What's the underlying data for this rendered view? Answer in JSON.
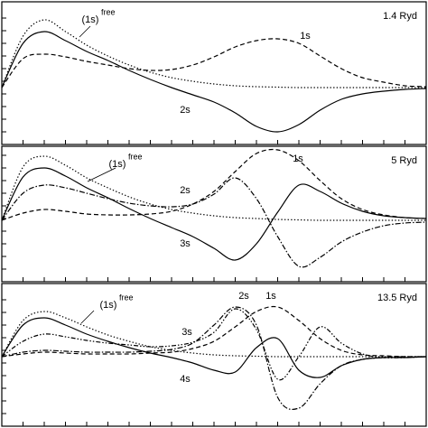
{
  "chart_data": [
    {
      "type": "line",
      "annotation": "1.4 Ryd",
      "x": [
        0,
        5,
        10,
        15,
        20,
        25,
        30,
        35,
        40,
        45,
        50,
        55,
        60,
        65,
        70,
        75,
        80,
        85,
        90,
        95,
        100
      ],
      "xlim": [
        0,
        100
      ],
      "ylim": [
        -1.26,
        1.9
      ],
      "series": [
        {
          "name": "(1s)",
          "name_sup": "free",
          "color": "#000",
          "style": "dotted",
          "values": [
            0,
            1.14,
            1.5,
            1.24,
            0.94,
            0.7,
            0.5,
            0.34,
            0.22,
            0.14,
            0.08,
            0.04,
            0.02,
            0.01,
            0,
            0,
            0,
            0,
            0,
            0,
            0
          ]
        },
        {
          "name": "1s",
          "color": "#000",
          "style": "dashed",
          "values": [
            0,
            0.64,
            0.74,
            0.68,
            0.58,
            0.5,
            0.42,
            0.38,
            0.4,
            0.5,
            0.68,
            0.9,
            1.04,
            1.08,
            0.98,
            0.7,
            0.42,
            0.22,
            0.12,
            0.04,
            0.02
          ]
        },
        {
          "name": "2s",
          "color": "#000",
          "style": "solid",
          "values": [
            0,
            0.98,
            1.24,
            1.04,
            0.8,
            0.6,
            0.38,
            0.18,
            0,
            -0.16,
            -0.32,
            -0.56,
            -0.86,
            -0.98,
            -0.82,
            -0.5,
            -0.26,
            -0.14,
            -0.08,
            -0.04,
            -0.02
          ]
        }
      ]
    },
    {
      "type": "line",
      "annotation": "5 Ryd",
      "x": [
        0,
        5,
        10,
        15,
        20,
        25,
        30,
        35,
        40,
        45,
        50,
        55,
        60,
        65,
        70,
        75,
        80,
        85,
        90,
        95,
        100
      ],
      "xlim": [
        0,
        100
      ],
      "ylim": [
        -1.36,
        1.64
      ],
      "series": [
        {
          "name": "(1s)",
          "name_sup": "free",
          "color": "#000",
          "style": "dotted",
          "values": [
            0,
            1.18,
            1.42,
            1.22,
            0.94,
            0.72,
            0.52,
            0.36,
            0.24,
            0.16,
            0.1,
            0.06,
            0.04,
            0.02,
            0.01,
            0,
            0,
            0,
            0,
            0,
            0
          ]
        },
        {
          "name": "2s",
          "color": "#000",
          "style": "dashdot",
          "values": [
            0,
            0.6,
            0.78,
            0.72,
            0.6,
            0.48,
            0.38,
            0.32,
            0.3,
            0.36,
            0.58,
            0.94,
            0.48,
            -0.36,
            -1.02,
            -0.82,
            -0.48,
            -0.26,
            -0.12,
            -0.06,
            -0.04
          ]
        },
        {
          "name": "3s",
          "color": "#000",
          "style": "solid",
          "values": [
            0,
            0.96,
            1.16,
            0.98,
            0.72,
            0.5,
            0.26,
            0.04,
            -0.16,
            -0.36,
            -0.62,
            -0.88,
            -0.52,
            0.18,
            0.78,
            0.64,
            0.38,
            0.2,
            0.1,
            0.06,
            0.04
          ]
        },
        {
          "name": "1s",
          "color": "#000",
          "style": "dashed",
          "values": [
            0,
            0.16,
            0.24,
            0.2,
            0.14,
            0.12,
            0.12,
            0.14,
            0.2,
            0.36,
            0.64,
            1.08,
            1.48,
            1.56,
            1.32,
            0.88,
            0.48,
            0.24,
            0.12,
            0.06,
            0.04
          ]
        }
      ]
    },
    {
      "type": "line",
      "annotation": "13.5 Ryd",
      "x": [
        0,
        5,
        10,
        15,
        20,
        25,
        30,
        35,
        40,
        45,
        50,
        55,
        60,
        65,
        70,
        75,
        80,
        85,
        90,
        95,
        100
      ],
      "xlim": [
        0,
        100
      ],
      "ylim": [
        -1.54,
        1.62
      ],
      "series": [
        {
          "name": "(1s)",
          "name_sup": "free",
          "color": "#000",
          "style": "dotted",
          "values": [
            0,
            0.8,
            1.0,
            0.86,
            0.66,
            0.48,
            0.34,
            0.22,
            0.14,
            0.08,
            0.04,
            0.02,
            0.01,
            0,
            0,
            0,
            0,
            0,
            0,
            0,
            0
          ]
        },
        {
          "name": "3s",
          "color": "#000",
          "style": "dashdotdot",
          "values": [
            0,
            0.34,
            0.5,
            0.44,
            0.36,
            0.3,
            0.26,
            0.22,
            0.24,
            0.32,
            0.54,
            1.06,
            0.6,
            -0.5,
            0,
            0.66,
            0.3,
            0.06,
            -0.02,
            -0.02,
            0
          ]
        },
        {
          "name": "4s",
          "color": "#000",
          "style": "solid",
          "values": [
            0,
            0.7,
            0.86,
            0.7,
            0.5,
            0.34,
            0.2,
            0.08,
            -0.02,
            -0.14,
            -0.3,
            -0.34,
            0.2,
            0.4,
            -0.3,
            -0.46,
            -0.2,
            -0.06,
            -0.02,
            -0.02,
            0
          ]
        },
        {
          "name": "2s",
          "color": "#000",
          "style": "dashdot",
          "values": [
            0,
            0.1,
            0.14,
            0.12,
            0.1,
            0.1,
            0.1,
            0.12,
            0.16,
            0.3,
            0.7,
            1.1,
            0.7,
            -0.9,
            -1.14,
            -0.6,
            -0.2,
            -0.06,
            -0.02,
            0,
            0
          ]
        },
        {
          "name": "1s",
          "color": "#000",
          "style": "dashed",
          "values": [
            0,
            0.06,
            0.1,
            0.08,
            0.06,
            0.06,
            0.06,
            0.08,
            0.1,
            0.18,
            0.34,
            0.66,
            1.0,
            1.1,
            0.8,
            0.4,
            0.14,
            0.04,
            0.02,
            0,
            0
          ]
        }
      ]
    }
  ]
}
